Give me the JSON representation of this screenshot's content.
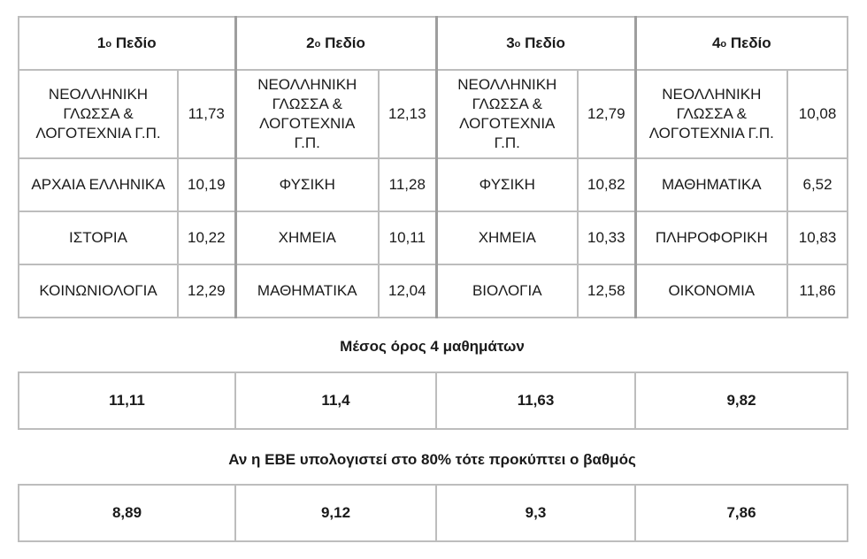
{
  "fields": [
    {
      "num": "1",
      "ord": "ο",
      "label": "Πεδίο",
      "rows": [
        {
          "subject": "ΝΕΟΛΛΗΝΙΚΗ ΓΛΩΣΣΑ & ΛΟΓΟΤΕΧΝΙΑ Γ.Π.",
          "grade": "11,73"
        },
        {
          "subject": "ΑΡΧΑΙΑ ΕΛΛΗΝΙΚΑ",
          "grade": "10,19"
        },
        {
          "subject": "ΙΣΤΟΡΙΑ",
          "grade": "10,22"
        },
        {
          "subject": "ΚΟΙΝΩΝΙΟΛΟΓΙΑ",
          "grade": "12,29"
        }
      ]
    },
    {
      "num": "2",
      "ord": "ο",
      "label": "Πεδίο",
      "rows": [
        {
          "subject": "ΝΕΟΛΛΗΝΙΚΗ ΓΛΩΣΣΑ & ΛΟΓΟΤΕΧΝΙΑ Γ.Π.",
          "grade": "12,13"
        },
        {
          "subject": "ΦΥΣΙΚΗ",
          "grade": "11,28"
        },
        {
          "subject": "ΧΗΜΕΙΑ",
          "grade": "10,11"
        },
        {
          "subject": "ΜΑΘΗΜΑΤΙΚΑ",
          "grade": "12,04"
        }
      ]
    },
    {
      "num": "3",
      "ord": "ο",
      "label": "Πεδίο",
      "rows": [
        {
          "subject": "ΝΕΟΛΛΗΝΙΚΗ ΓΛΩΣΣΑ & ΛΟΓΟΤΕΧΝΙΑ Γ.Π.",
          "grade": "12,79"
        },
        {
          "subject": "ΦΥΣΙΚΗ",
          "grade": "10,82"
        },
        {
          "subject": "ΧΗΜΕΙΑ",
          "grade": "10,33"
        },
        {
          "subject": "ΒΙΟΛΟΓΙΑ",
          "grade": "12,58"
        }
      ]
    },
    {
      "num": "4",
      "ord": "ο",
      "label": "Πεδίο",
      "rows": [
        {
          "subject": "ΝΕΟΛΛΗΝΙΚΗ ΓΛΩΣΣΑ & ΛΟΓΟΤΕΧΝΙΑ Γ.Π.",
          "grade": "10,08"
        },
        {
          "subject": "ΜΑΘΗΜΑΤΙΚΑ",
          "grade": "6,52"
        },
        {
          "subject": "ΠΛΗΡΟΦΟΡΙΚΗ",
          "grade": "10,83"
        },
        {
          "subject": "ΟΙΚΟΝΟΜΙΑ",
          "grade": "11,86"
        }
      ]
    }
  ],
  "average_caption": "Μέσος όρος 4 μαθημάτων",
  "averages": [
    "11,11",
    "11,4",
    "11,63",
    "9,82"
  ],
  "ebe_caption": "Αν η ΕΒΕ υπολογιστεί στο 80% τότε προκύπτει ο βαθμός",
  "ebe_grades": [
    "8,89",
    "9,12",
    "9,3",
    "7,86"
  ]
}
